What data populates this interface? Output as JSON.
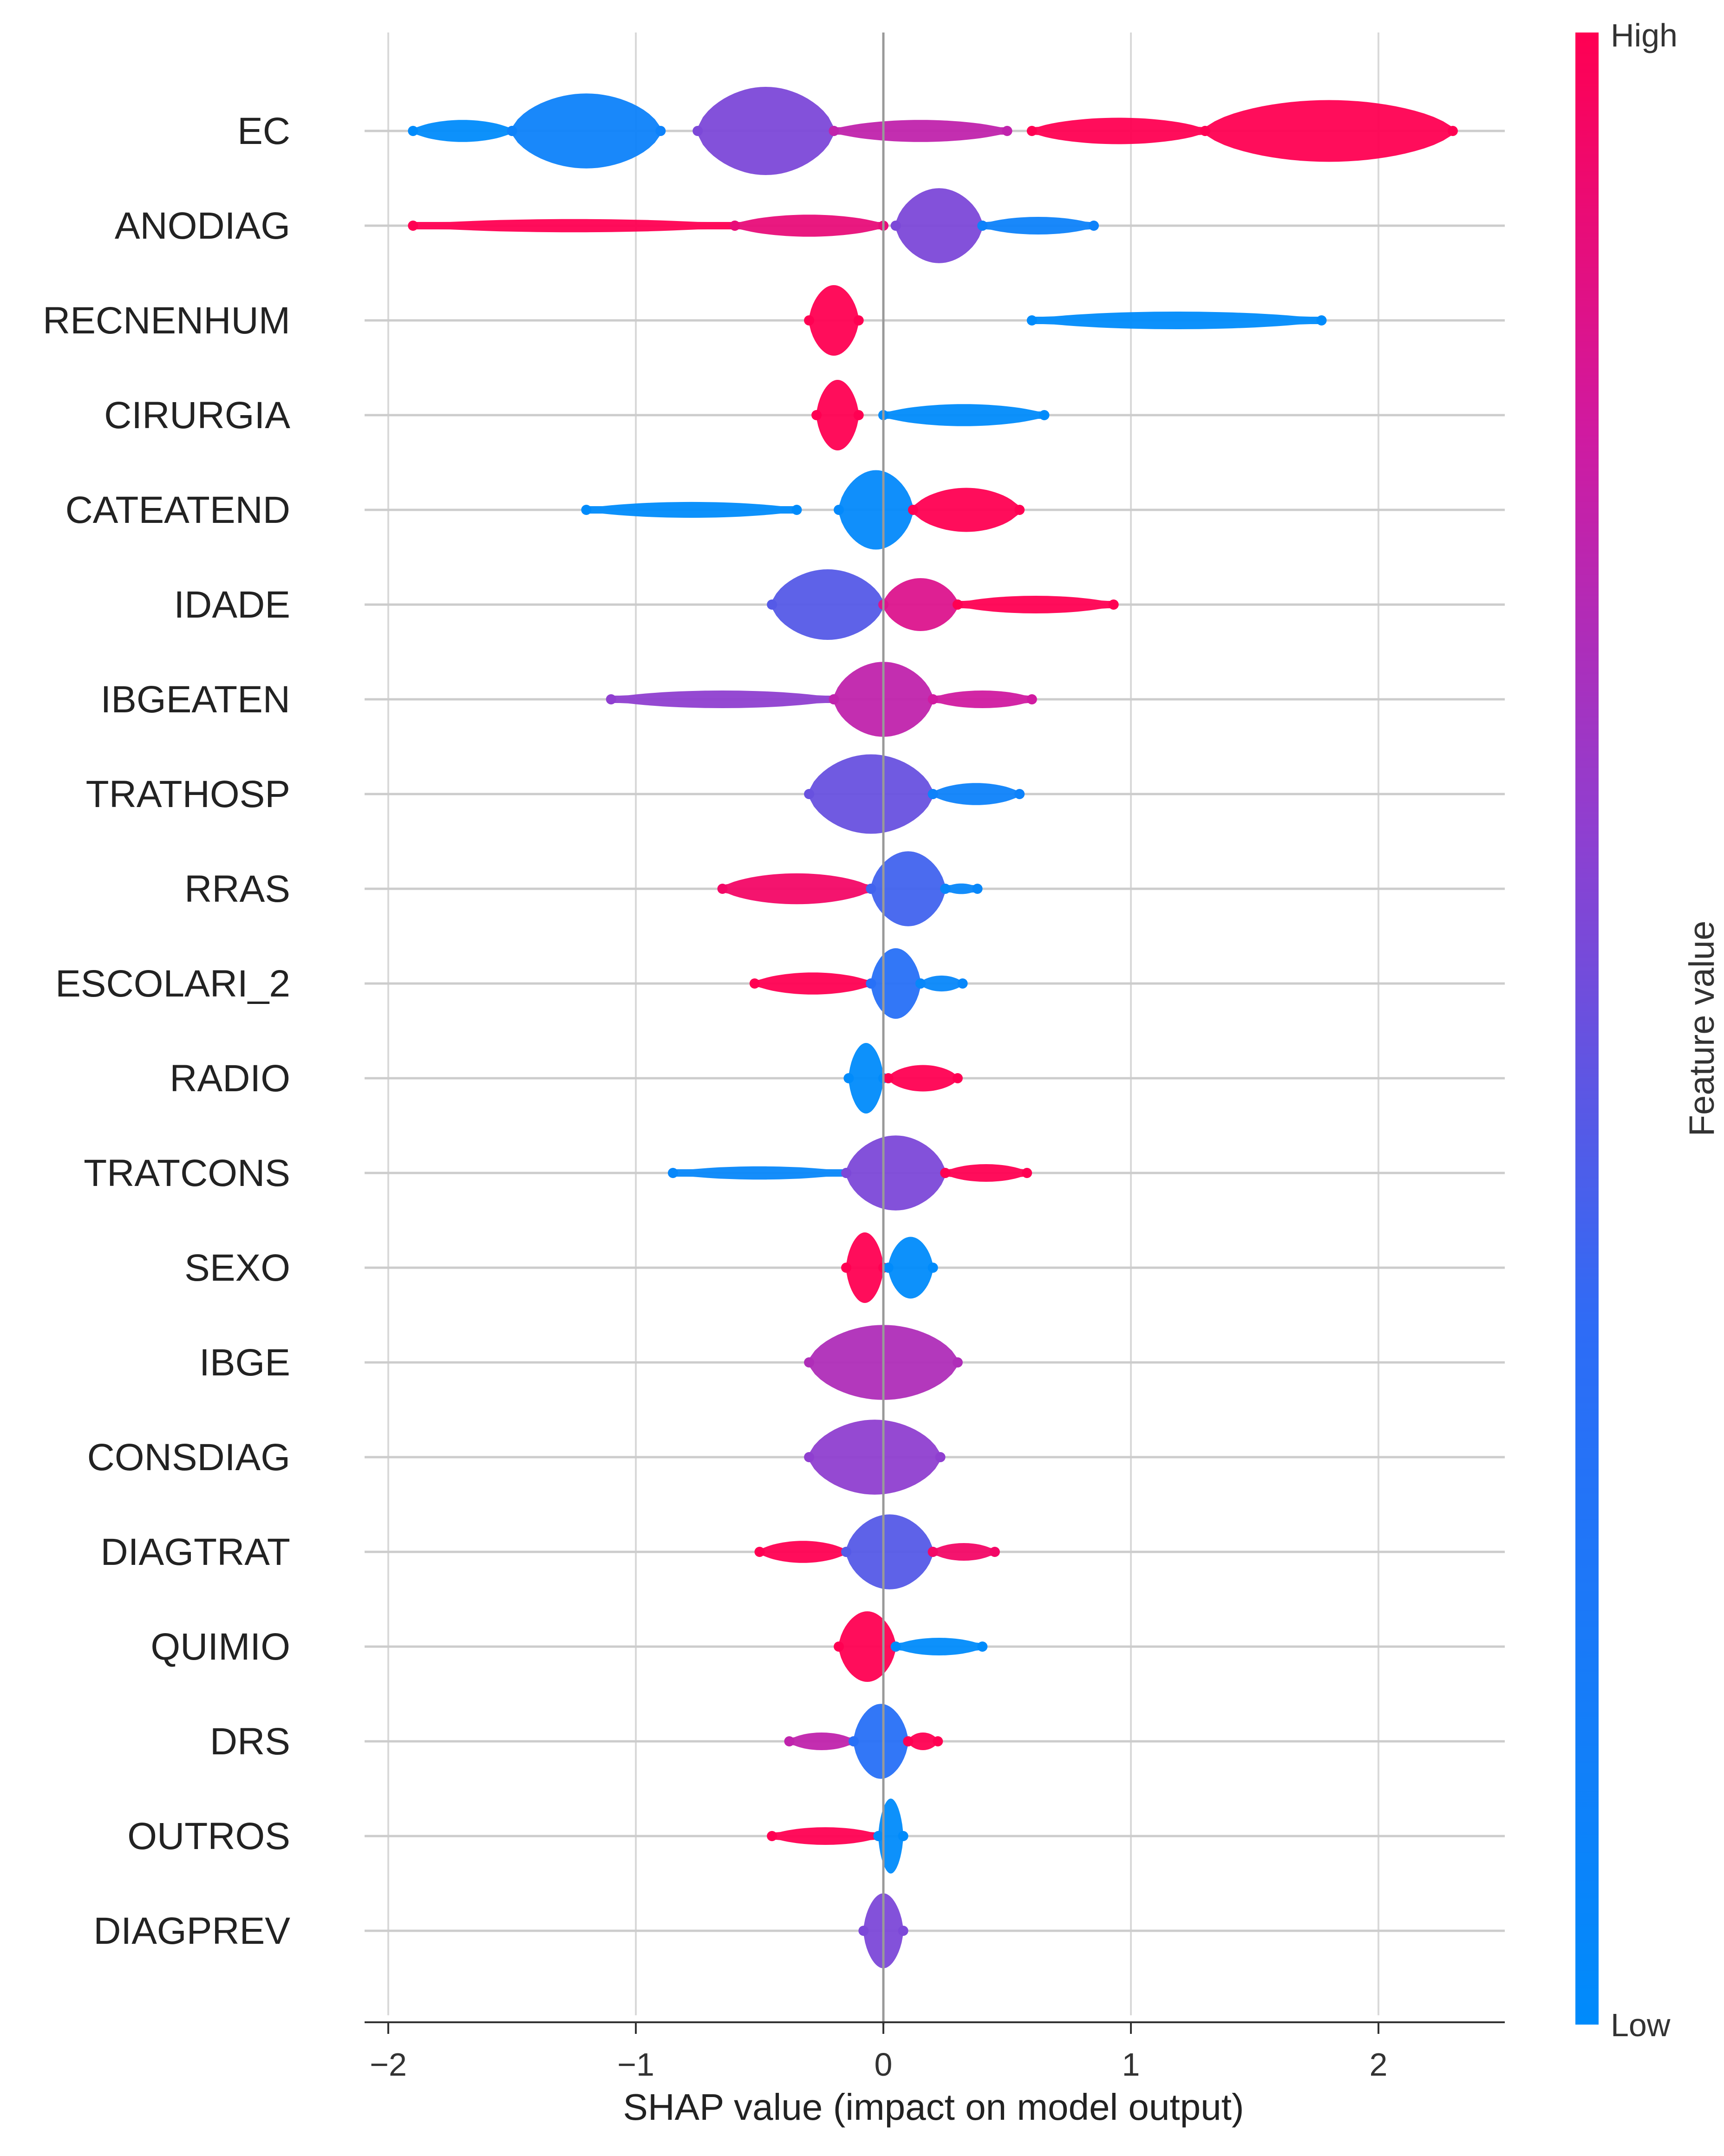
{
  "chart_data": {
    "type": "scatter",
    "subtype": "shap-beeswarm-summary",
    "title": "",
    "xlabel": "SHAP value (impact on model output)",
    "ylabel": "",
    "xlim": [
      -2.1,
      2.5
    ],
    "xticks": [
      -2,
      -1,
      0,
      1,
      2
    ],
    "xtick_labels": [
      "−2",
      "−1",
      "0",
      "1",
      "2"
    ],
    "colorbar": {
      "label": "Feature value",
      "high_label": "High",
      "low_label": "Low",
      "high_color": "#ff0052",
      "low_color": "#008bfb"
    },
    "features": [
      {
        "name": "EC",
        "segments": [
          {
            "from": -1.9,
            "to": -1.5,
            "w": 0.25,
            "c": 0.0
          },
          {
            "from": -1.5,
            "to": -0.9,
            "w": 0.85,
            "c": 0.1
          },
          {
            "from": -0.75,
            "to": -0.2,
            "w": 1.0,
            "c": 0.55
          },
          {
            "from": -0.2,
            "to": 0.5,
            "w": 0.25,
            "c": 0.75
          },
          {
            "from": 0.6,
            "to": 1.3,
            "w": 0.3,
            "c": 1.0
          },
          {
            "from": 1.3,
            "to": 2.3,
            "w": 0.7,
            "c": 1.0
          }
        ]
      },
      {
        "name": "ANODIAG",
        "segments": [
          {
            "from": -1.9,
            "to": -0.6,
            "w": 0.15,
            "c": 1.0
          },
          {
            "from": -0.6,
            "to": 0.0,
            "w": 0.25,
            "c": 0.9
          },
          {
            "from": 0.05,
            "to": 0.4,
            "w": 0.85,
            "c": 0.55
          },
          {
            "from": 0.4,
            "to": 0.85,
            "w": 0.2,
            "c": 0.1
          }
        ]
      },
      {
        "name": "RECNENHUM",
        "segments": [
          {
            "from": -0.3,
            "to": -0.1,
            "w": 0.8,
            "c": 1.0
          },
          {
            "from": 0.6,
            "to": 1.77,
            "w": 0.2,
            "c": 0.0
          }
        ]
      },
      {
        "name": "CIRURGIA",
        "segments": [
          {
            "from": -0.27,
            "to": -0.1,
            "w": 0.8,
            "c": 1.0
          },
          {
            "from": 0.0,
            "to": 0.65,
            "w": 0.25,
            "c": 0.0
          }
        ]
      },
      {
        "name": "CATEATEND",
        "segments": [
          {
            "from": -1.2,
            "to": -0.35,
            "w": 0.18,
            "c": 0.0
          },
          {
            "from": -0.18,
            "to": 0.12,
            "w": 0.9,
            "c": 0.02
          },
          {
            "from": 0.12,
            "to": 0.55,
            "w": 0.5,
            "c": 1.0
          }
        ]
      },
      {
        "name": "IDADE",
        "segments": [
          {
            "from": -0.45,
            "to": 0.0,
            "w": 0.8,
            "c": 0.45
          },
          {
            "from": 0.0,
            "to": 0.3,
            "w": 0.6,
            "c": 0.85
          },
          {
            "from": 0.3,
            "to": 0.93,
            "w": 0.2,
            "c": 1.0
          }
        ]
      },
      {
        "name": "IBGEATEN",
        "segments": [
          {
            "from": -1.1,
            "to": -0.2,
            "w": 0.2,
            "c": 0.6
          },
          {
            "from": -0.2,
            "to": 0.2,
            "w": 0.85,
            "c": 0.75
          },
          {
            "from": 0.2,
            "to": 0.6,
            "w": 0.2,
            "c": 0.8
          }
        ]
      },
      {
        "name": "TRATHOSP",
        "segments": [
          {
            "from": -0.3,
            "to": 0.2,
            "w": 0.9,
            "c": 0.5
          },
          {
            "from": 0.2,
            "to": 0.55,
            "w": 0.25,
            "c": 0.1
          }
        ]
      },
      {
        "name": "RRAS",
        "segments": [
          {
            "from": -0.65,
            "to": -0.05,
            "w": 0.35,
            "c": 0.95
          },
          {
            "from": -0.05,
            "to": 0.25,
            "w": 0.85,
            "c": 0.4
          },
          {
            "from": 0.25,
            "to": 0.38,
            "w": 0.12,
            "c": 0.05
          }
        ]
      },
      {
        "name": "ESCOLARI_2",
        "segments": [
          {
            "from": -0.52,
            "to": -0.05,
            "w": 0.25,
            "c": 1.0
          },
          {
            "from": -0.05,
            "to": 0.15,
            "w": 0.8,
            "c": 0.3
          },
          {
            "from": 0.15,
            "to": 0.32,
            "w": 0.18,
            "c": 0.05
          }
        ]
      },
      {
        "name": "RADIO",
        "segments": [
          {
            "from": -0.14,
            "to": 0.0,
            "w": 0.8,
            "c": 0.0
          },
          {
            "from": 0.02,
            "to": 0.3,
            "w": 0.3,
            "c": 1.0
          }
        ]
      },
      {
        "name": "TRATCONS",
        "segments": [
          {
            "from": -0.85,
            "to": -0.15,
            "w": 0.15,
            "c": 0.05
          },
          {
            "from": -0.15,
            "to": 0.25,
            "w": 0.85,
            "c": 0.55
          },
          {
            "from": 0.25,
            "to": 0.58,
            "w": 0.2,
            "c": 1.0
          }
        ]
      },
      {
        "name": "SEXO",
        "segments": [
          {
            "from": -0.15,
            "to": 0.0,
            "w": 0.8,
            "c": 1.0
          },
          {
            "from": 0.02,
            "to": 0.2,
            "w": 0.7,
            "c": 0.0
          }
        ]
      },
      {
        "name": "IBGE",
        "segments": [
          {
            "from": -0.3,
            "to": 0.3,
            "w": 0.85,
            "c": 0.7
          }
        ]
      },
      {
        "name": "CONSDIAG",
        "segments": [
          {
            "from": -0.3,
            "to": 0.23,
            "w": 0.85,
            "c": 0.6
          }
        ]
      },
      {
        "name": "DIAGTRAT",
        "segments": [
          {
            "from": -0.5,
            "to": -0.15,
            "w": 0.25,
            "c": 1.0
          },
          {
            "from": -0.15,
            "to": 0.2,
            "w": 0.85,
            "c": 0.45
          },
          {
            "from": 0.2,
            "to": 0.45,
            "w": 0.2,
            "c": 0.95
          }
        ]
      },
      {
        "name": "QUIMIO",
        "segments": [
          {
            "from": -0.18,
            "to": 0.05,
            "w": 0.8,
            "c": 1.0
          },
          {
            "from": 0.05,
            "to": 0.4,
            "w": 0.2,
            "c": 0.0
          }
        ]
      },
      {
        "name": "DRS",
        "segments": [
          {
            "from": -0.38,
            "to": -0.12,
            "w": 0.2,
            "c": 0.75
          },
          {
            "from": -0.12,
            "to": 0.1,
            "w": 0.85,
            "c": 0.3
          },
          {
            "from": 0.1,
            "to": 0.22,
            "w": 0.2,
            "c": 1.0
          }
        ]
      },
      {
        "name": "OUTROS",
        "segments": [
          {
            "from": -0.45,
            "to": -0.02,
            "w": 0.2,
            "c": 1.0
          },
          {
            "from": -0.02,
            "to": 0.08,
            "w": 0.85,
            "c": 0.0
          }
        ]
      },
      {
        "name": "DIAGPREV",
        "segments": [
          {
            "from": -0.08,
            "to": 0.08,
            "w": 0.85,
            "c": 0.55
          }
        ]
      }
    ]
  }
}
